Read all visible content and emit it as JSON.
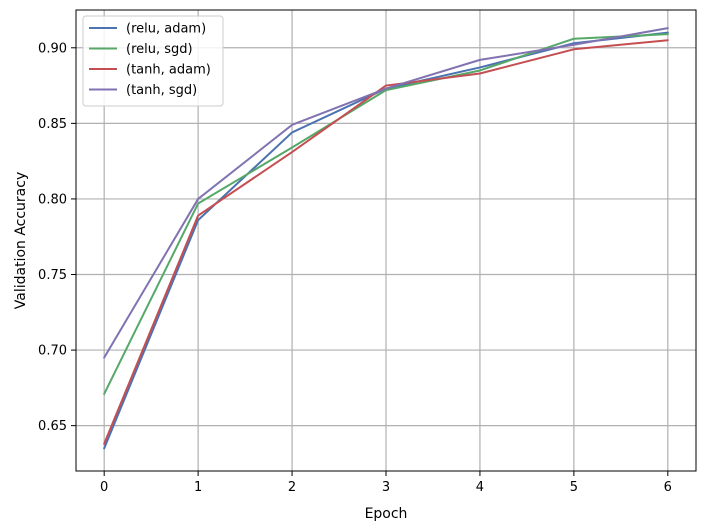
{
  "chart_data": {
    "type": "line",
    "xlabel": "Epoch",
    "ylabel": "Validation Accuracy",
    "x": [
      0,
      1,
      2,
      3,
      4,
      5,
      6
    ],
    "xlim": [
      -0.3,
      6.3
    ],
    "ylim": [
      0.62,
      0.925
    ],
    "xticks": [
      "0",
      "1",
      "2",
      "3",
      "4",
      "5",
      "6"
    ],
    "yticks": [
      "0.65",
      "0.70",
      "0.75",
      "0.80",
      "0.85",
      "0.90"
    ],
    "ytick_values": [
      0.65,
      0.7,
      0.75,
      0.8,
      0.85,
      0.9
    ],
    "grid": true,
    "legend_position": "top-left",
    "series": [
      {
        "name": "(relu, adam)",
        "color": "#4c72b0",
        "values": [
          0.635,
          0.786,
          0.844,
          0.873,
          0.887,
          0.903,
          0.91
        ]
      },
      {
        "name": "(relu, sgd)",
        "color": "#55a868",
        "values": [
          0.671,
          0.797,
          0.834,
          0.872,
          0.885,
          0.906,
          0.909
        ]
      },
      {
        "name": "(tanh, adam)",
        "color": "#c44e52",
        "values": [
          0.638,
          0.789,
          0.831,
          0.875,
          0.883,
          0.899,
          0.905
        ]
      },
      {
        "name": "(tanh, sgd)",
        "color": "#8172b2",
        "values": [
          0.695,
          0.8,
          0.849,
          0.873,
          0.892,
          0.902,
          0.913
        ]
      }
    ]
  }
}
